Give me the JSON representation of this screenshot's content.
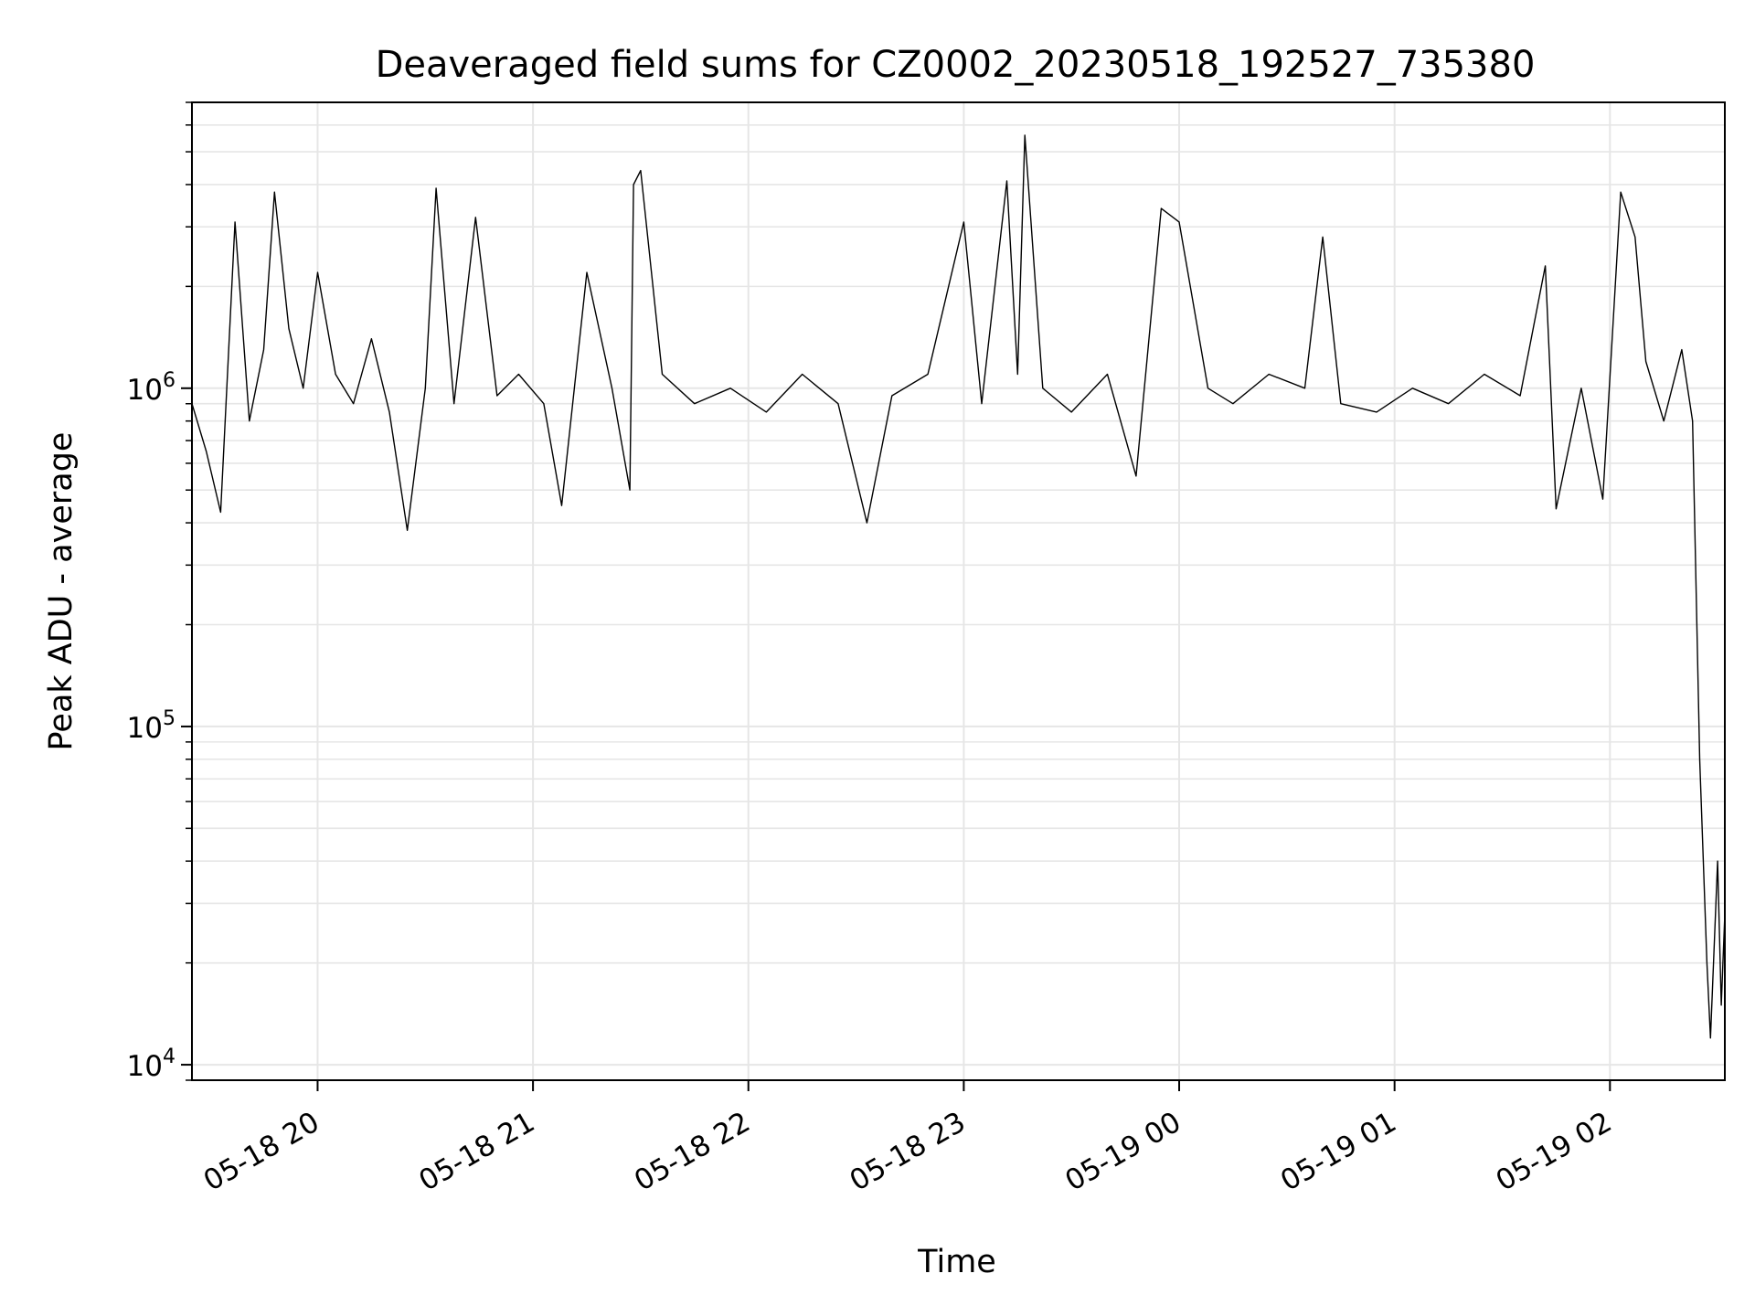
{
  "chart_data": {
    "type": "line",
    "title": "Deaveraged field sums for CZ0002_20230518_192527_735380",
    "xlabel": "Time",
    "ylabel": "Peak ADU - average",
    "yscale": "log",
    "xlim": [
      "2023-05-18 19:25",
      "2023-05-19 02:32"
    ],
    "ylim": [
      9000,
      7000000
    ],
    "x_ticks": [
      {
        "label": "05-18 20",
        "t": "2023-05-18 20:00"
      },
      {
        "label": "05-18 21",
        "t": "2023-05-18 21:00"
      },
      {
        "label": "05-18 22",
        "t": "2023-05-18 22:00"
      },
      {
        "label": "05-18 23",
        "t": "2023-05-18 23:00"
      },
      {
        "label": "05-19 00",
        "t": "2023-05-19 00:00"
      },
      {
        "label": "05-19 01",
        "t": "2023-05-19 01:00"
      },
      {
        "label": "05-19 02",
        "t": "2023-05-19 02:00"
      }
    ],
    "y_ticks": [
      {
        "value": 10000,
        "base": "10",
        "exp": "4"
      },
      {
        "value": 100000,
        "base": "10",
        "exp": "5"
      },
      {
        "value": 1000000,
        "base": "10",
        "exp": "6"
      }
    ],
    "grid": true,
    "line_color": "#000000",
    "grid_color": "#e6e6e6",
    "series": [
      {
        "values": [
          [
            "2023-05-18 19:25",
            900000
          ],
          [
            "2023-05-18 19:29",
            650000
          ],
          [
            "2023-05-18 19:33",
            430000
          ],
          [
            "2023-05-18 19:37",
            3100000
          ],
          [
            "2023-05-18 19:41",
            800000
          ],
          [
            "2023-05-18 19:45",
            1300000
          ],
          [
            "2023-05-18 19:48",
            3800000
          ],
          [
            "2023-05-18 19:52",
            1500000
          ],
          [
            "2023-05-18 19:56",
            1000000
          ],
          [
            "2023-05-18 20:00",
            2200000
          ],
          [
            "2023-05-18 20:05",
            1100000
          ],
          [
            "2023-05-18 20:10",
            900000
          ],
          [
            "2023-05-18 20:15",
            1400000
          ],
          [
            "2023-05-18 20:20",
            850000
          ],
          [
            "2023-05-18 20:25",
            380000
          ],
          [
            "2023-05-18 20:30",
            1000000
          ],
          [
            "2023-05-18 20:33",
            3900000
          ],
          [
            "2023-05-18 20:38",
            900000
          ],
          [
            "2023-05-18 20:44",
            3200000
          ],
          [
            "2023-05-18 20:50",
            950000
          ],
          [
            "2023-05-18 20:56",
            1100000
          ],
          [
            "2023-05-18 21:03",
            900000
          ],
          [
            "2023-05-18 21:08",
            450000
          ],
          [
            "2023-05-18 21:15",
            2200000
          ],
          [
            "2023-05-18 21:22",
            1000000
          ],
          [
            "2023-05-18 21:27",
            500000
          ],
          [
            "2023-05-18 21:28",
            4000000
          ],
          [
            "2023-05-18 21:30",
            4400000
          ],
          [
            "2023-05-18 21:36",
            1100000
          ],
          [
            "2023-05-18 21:45",
            900000
          ],
          [
            "2023-05-18 21:55",
            1000000
          ],
          [
            "2023-05-18 22:05",
            850000
          ],
          [
            "2023-05-18 22:15",
            1100000
          ],
          [
            "2023-05-18 22:25",
            900000
          ],
          [
            "2023-05-18 22:33",
            400000
          ],
          [
            "2023-05-18 22:40",
            950000
          ],
          [
            "2023-05-18 22:50",
            1100000
          ],
          [
            "2023-05-18 23:00",
            3100000
          ],
          [
            "2023-05-18 23:05",
            900000
          ],
          [
            "2023-05-18 23:12",
            4100000
          ],
          [
            "2023-05-18 23:15",
            1100000
          ],
          [
            "2023-05-18 23:17",
            5600000
          ],
          [
            "2023-05-18 23:22",
            1000000
          ],
          [
            "2023-05-18 23:30",
            850000
          ],
          [
            "2023-05-18 23:40",
            1100000
          ],
          [
            "2023-05-18 23:48",
            550000
          ],
          [
            "2023-05-18 23:55",
            3400000
          ],
          [
            "2023-05-19 00:00",
            3100000
          ],
          [
            "2023-05-19 00:08",
            1000000
          ],
          [
            "2023-05-19 00:15",
            900000
          ],
          [
            "2023-05-19 00:25",
            1100000
          ],
          [
            "2023-05-19 00:35",
            1000000
          ],
          [
            "2023-05-19 00:40",
            2800000
          ],
          [
            "2023-05-19 00:45",
            900000
          ],
          [
            "2023-05-19 00:55",
            850000
          ],
          [
            "2023-05-19 01:05",
            1000000
          ],
          [
            "2023-05-19 01:15",
            900000
          ],
          [
            "2023-05-19 01:25",
            1100000
          ],
          [
            "2023-05-19 01:35",
            950000
          ],
          [
            "2023-05-19 01:42",
            2300000
          ],
          [
            "2023-05-19 01:45",
            440000
          ],
          [
            "2023-05-19 01:52",
            1000000
          ],
          [
            "2023-05-19 01:58",
            470000
          ],
          [
            "2023-05-19 02:03",
            3800000
          ],
          [
            "2023-05-19 02:07",
            2800000
          ],
          [
            "2023-05-19 02:10",
            1200000
          ],
          [
            "2023-05-19 02:15",
            800000
          ],
          [
            "2023-05-19 02:20",
            1300000
          ],
          [
            "2023-05-19 02:23",
            800000
          ],
          [
            "2023-05-19 02:25",
            80000
          ],
          [
            "2023-05-19 02:27",
            20000
          ],
          [
            "2023-05-19 02:28",
            12000
          ],
          [
            "2023-05-19 02:30",
            40000
          ],
          [
            "2023-05-19 02:31",
            15000
          ],
          [
            "2023-05-19 02:32",
            28000
          ]
        ]
      }
    ]
  }
}
